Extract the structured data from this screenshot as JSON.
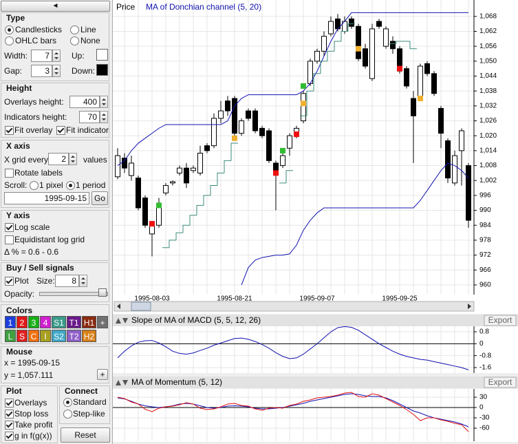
{
  "controls": {
    "collapse": "◄",
    "type": {
      "title": "Type",
      "options": [
        "Candlesticks",
        "Line",
        "OHLC bars",
        "None"
      ],
      "width_label": "Width:",
      "width": 7,
      "up_label": "Up:",
      "gap_label": "Gap:",
      "gap": 3,
      "down_label": "Down:"
    },
    "height": {
      "title": "Height",
      "overlays_label": "Overlays height:",
      "overlays": 400,
      "indicators_label": "Indicators height:",
      "indicators": 70,
      "fit_overlay": "Fit overlay",
      "fit_indicator": "Fit indicator"
    },
    "x_axis": {
      "title": "X axis",
      "grid_label": "X grid every",
      "grid_every": 2,
      "grid_unit": "values",
      "rotate": "Rotate labels",
      "scroll_label": "Scroll:",
      "scroll_options": [
        "1 pixel",
        "1 period"
      ],
      "date": "1995-09-15",
      "go": "Go"
    },
    "y_axis": {
      "title": "Y axis",
      "log": "Log scale",
      "equidistant": "Equidistant log grid",
      "delta": "Δ % = 0.6 - 0.6"
    },
    "signals": {
      "title": "Buy / Sell signals",
      "plot": "Plot",
      "size_label": "Size:",
      "size": 8,
      "opacity_label": "Opacity:"
    },
    "colors": {
      "title": "Colors",
      "buttons": [
        {
          "label": "1",
          "color": "#1c3fdc"
        },
        {
          "label": "2",
          "color": "#e01818"
        },
        {
          "label": "3",
          "color": "#18b018"
        },
        {
          "label": "4",
          "color": "#d020d0"
        },
        {
          "label": "S1",
          "color": "#3a9a8a"
        },
        {
          "label": "T1",
          "color": "#6a1a8a"
        },
        {
          "label": "H1",
          "color": "#8a2a10"
        },
        {
          "label": "+",
          "color": "#707070"
        },
        {
          "label": "L",
          "color": "#40a040"
        },
        {
          "label": "S",
          "color": "#e02020"
        },
        {
          "label": "C",
          "color": "#f07010"
        },
        {
          "label": "I",
          "color": "#a8a020"
        },
        {
          "label": "S2",
          "color": "#40a8c8"
        },
        {
          "label": "T2",
          "color": "#9060c8"
        },
        {
          "label": "H2",
          "color": "#d88018"
        }
      ]
    },
    "mouse": {
      "title": "Mouse",
      "x": "x = 1995-09-15",
      "y": "y = 1,057.111",
      "add": "+"
    },
    "plot": {
      "title": "Plot",
      "options": [
        "Overlays",
        "Stop loss",
        "Take profit",
        "g in f(g(x))"
      ]
    },
    "connect": {
      "title": "Connect",
      "options": [
        "Standard",
        "Step-like"
      ]
    },
    "reset": "Reset"
  },
  "chart_data": [
    {
      "type": "candlestick",
      "price_label": "Price",
      "categories": [
        null,
        null,
        null,
        null,
        null,
        "1995-08-03",
        null,
        null,
        null,
        null,
        null,
        null,
        null,
        null,
        null,
        null,
        null,
        "1995-08-21",
        null,
        null,
        null,
        null,
        null,
        null,
        null,
        null,
        null,
        null,
        null,
        "1995-09-07",
        null,
        null,
        null,
        null,
        null,
        null,
        null,
        null,
        null,
        null,
        null,
        "1995-09-25",
        null,
        null,
        null,
        null,
        null,
        null,
        null,
        null,
        null,
        null
      ],
      "open": [
        1003.5,
        1011,
        1004,
        1003,
        995,
        980.5,
        984,
        997,
        1001,
        1005,
        1007,
        1006,
        1005,
        1016,
        1016,
        1027,
        1034,
        1035,
        1021,
        1030,
        1030,
        1023,
        1022,
        1009,
        1008,
        1015,
        1020,
        1026,
        1041,
        1050,
        1054,
        1061,
        1067,
        1062,
        1067,
        1064,
        1055,
        1043,
        1066,
        1056,
        1058,
        1055,
        1047,
        1035,
        1035,
        1049,
        1045,
        1031,
        1018,
        1001,
        1014,
        1008
      ],
      "high": [
        1015,
        1013,
        1012,
        1004,
        996,
        985.5,
        995,
        1001,
        1002,
        1008,
        1009,
        1008,
        1016,
        1017,
        1029,
        1034,
        1036,
        1036,
        1027,
        1031,
        1031,
        1024,
        1023,
        1010,
        1013,
        1021,
        1024,
        1038,
        1051,
        1055,
        1062,
        1068,
        1069,
        1068,
        1068,
        1065,
        1057,
        1065,
        1067,
        1064,
        1060,
        1056,
        1048,
        1038,
        1049,
        1050,
        1046,
        1032,
        1019,
        1014,
        1023,
        1009
      ],
      "low": [
        1002.5,
        1005,
        1002,
        990,
        983,
        971.5,
        983,
        996,
        1000,
        1004,
        999,
        1005,
        1004,
        1013,
        1015,
        1025,
        1028,
        1019,
        1020,
        1026,
        1021,
        1019,
        1009,
        990,
        1007,
        1012,
        1019,
        1025,
        1040,
        1049,
        1052,
        1060,
        1062,
        1061,
        1063,
        1050,
        1047,
        1042,
        1063,
        1055,
        1053,
        1045,
        1039,
        1009,
        1034,
        1044,
        1036,
        1015,
        1001,
        1000,
        1000,
        983
      ],
      "close": [
        1012,
        1007,
        1009,
        991,
        984,
        984.5,
        992,
        1000,
        1001.5,
        1007,
        1001,
        1007,
        1013,
        1014,
        1027,
        1030,
        1030,
        1021,
        1026,
        1027,
        1022,
        1020,
        1010,
        1005,
        1012,
        1020,
        1023,
        1037,
        1050,
        1054,
        1060,
        1066,
        1063,
        1066,
        1064,
        1051,
        1048,
        1063,
        1064,
        1063,
        1055,
        1046,
        1040,
        1028,
        1048,
        1045,
        1037,
        1021,
        1003,
        1012,
        1022,
        986
      ],
      "up_color": "#ffffff",
      "down_color": "#000000",
      "overlays": [
        {
          "name": "MA of Donchian channel (5, 20)",
          "color": "#1010b0",
          "values": [
            1008,
            1010,
            1014,
            1017,
            1019,
            1021,
            1023,
            1024.5,
            1024.5,
            1024.5,
            1024.5,
            1024.5,
            1024.5,
            1024.5,
            1024.5,
            1024.5,
            1026,
            1032,
            1035,
            1036.5,
            1036.5,
            1036.5,
            1036.5,
            1036.5,
            1036.5,
            1036.5,
            1036.5,
            1038,
            1041,
            1046,
            1052,
            1058,
            1063,
            1066,
            1069.5,
            1069.5,
            1069.5,
            1069.5,
            1069.5,
            1069.5,
            1069.5,
            1069.5,
            1069.5,
            1069.5,
            1069.5,
            1069.5,
            1069.5,
            1069.5,
            1069.5,
            1069.5,
            1069.5,
            1069.5
          ],
          "lower": [
            null,
            null,
            null,
            null,
            null,
            null,
            null,
            null,
            null,
            null,
            null,
            null,
            null,
            null,
            null,
            null,
            null,
            null,
            960,
            967,
            970,
            971,
            971.5,
            972,
            972,
            972.5,
            976,
            982,
            986,
            989,
            991,
            991,
            991,
            991,
            991,
            991,
            991,
            991,
            991,
            991,
            991,
            991,
            991,
            991,
            994,
            998,
            1002,
            1006,
            1009,
            1008,
            1006,
            1003
          ]
        }
      ],
      "stop_line": {
        "color": "#3a8a7a",
        "values": [
          null,
          null,
          null,
          null,
          null,
          null,
          null,
          975,
          978,
          981,
          984,
          988,
          992,
          996,
          1000,
          1005,
          1010,
          1017,
          null,
          null,
          null,
          null,
          null,
          null,
          1001,
          1006,
          null,
          1028,
          1038,
          1045,
          1050,
          1054,
          1058,
          1062,
          1065,
          null,
          null,
          null,
          null,
          null,
          1057,
          1058,
          1058,
          1055,
          null,
          null,
          null,
          null,
          null,
          null,
          null,
          null
        ]
      },
      "signals": [
        {
          "index": 5,
          "value": 984.6,
          "color": "#ee1111"
        },
        {
          "index": 6,
          "value": 992,
          "color": "#33bb33"
        },
        {
          "index": 17,
          "value": 1019,
          "color": "#f0b030"
        },
        {
          "index": 23,
          "value": 1005,
          "color": "#ee1111"
        },
        {
          "index": 24,
          "value": 1014,
          "color": "#33bb33"
        },
        {
          "index": 26,
          "value": 1020.6,
          "color": "#ee1111"
        },
        {
          "index": 27,
          "value": 1033,
          "color": "#f0b030"
        },
        {
          "index": 27,
          "value": 1040,
          "color": "#33bb33"
        },
        {
          "index": 35,
          "value": 1055,
          "color": "#f0b030"
        },
        {
          "index": 41,
          "value": 1047,
          "color": "#ee1111"
        },
        {
          "index": 44,
          "value": 1035,
          "color": "#f0b030"
        }
      ],
      "ylim": [
        956.1,
        1074.6
      ],
      "yticks": [
        960,
        966,
        972,
        978,
        984,
        990,
        996,
        {
          "value": 1002,
          "label": "1,002"
        },
        {
          "value": 1008,
          "label": "1,008"
        },
        {
          "value": 1014,
          "label": "1,014"
        },
        {
          "value": 1020,
          "label": "1,020"
        },
        {
          "value": 1026,
          "label": "1,026"
        },
        {
          "value": 1032,
          "label": "1,032"
        },
        {
          "value": 1038,
          "label": "1,038"
        },
        {
          "value": 1044,
          "label": "1,044"
        },
        {
          "value": 1050,
          "label": "1,050"
        },
        {
          "value": 1056,
          "label": "1,056"
        },
        {
          "value": 1062,
          "label": "1,062"
        },
        {
          "value": 1068,
          "label": "1,068"
        }
      ],
      "grid": true
    },
    {
      "type": "line",
      "title": "Slope of MA of MACD (5, 5, 12, 26)",
      "export": "Export",
      "series": [
        {
          "color": "#1010b0",
          "values": [
            -0.95,
            -0.5,
            -0.15,
            0.1,
            0.2,
            0.22,
            0.05,
            -0.2,
            -0.5,
            -0.65,
            -0.7,
            -0.62,
            -0.45,
            -0.3,
            -0.1,
            0.05,
            0.2,
            0.35,
            0.38,
            0.3,
            0.15,
            -0.05,
            -0.3,
            -0.6,
            -0.85,
            -1.0,
            -0.95,
            -0.7,
            -0.35,
            0,
            0.4,
            0.8,
            1.08,
            1.15,
            1.1,
            0.9,
            0.6,
            0.3,
            0,
            -0.25,
            -0.5,
            -0.7,
            -0.85,
            -0.95,
            -1.05,
            -1.1,
            -1.2,
            -1.3,
            -1.4,
            -1.5,
            -1.6,
            -1.75
          ]
        }
      ],
      "ylim": [
        -1.97,
        1.17
      ],
      "yticks": [
        0.8,
        0,
        -0.8,
        -1.6
      ],
      "grid": true
    },
    {
      "type": "line",
      "title": "MA of Momentum (5, 12)",
      "export": "Export",
      "series": [
        {
          "color": "#1010b0",
          "values": [
            28,
            25,
            18,
            10,
            5,
            2,
            0,
            2,
            5,
            10,
            12,
            10,
            5,
            0,
            -2,
            0,
            4,
            5,
            4,
            2,
            -2,
            -4,
            -4,
            -2,
            0,
            4,
            8,
            12,
            18,
            22,
            26,
            30,
            34,
            38,
            40,
            38,
            34,
            32,
            32,
            28,
            20,
            10,
            0,
            -10,
            -16,
            -24,
            -30,
            -34,
            -38,
            -42,
            -48,
            -56
          ]
        },
        {
          "color": "#e01010",
          "values": [
            30,
            26,
            16,
            10,
            -5,
            -12,
            -2,
            2,
            4,
            8,
            14,
            10,
            -2,
            -6,
            -4,
            2,
            10,
            12,
            6,
            4,
            -4,
            -8,
            -2,
            0,
            -2,
            6,
            10,
            18,
            22,
            28,
            30,
            32,
            36,
            42,
            44,
            32,
            30,
            40,
            36,
            26,
            16,
            6,
            -6,
            -20,
            -38,
            -30,
            -30,
            -36,
            -40,
            -46,
            -50,
            -70
          ]
        }
      ],
      "ylim": [
        -98,
        54
      ],
      "yticks": [
        30,
        0,
        -30,
        -60
      ],
      "grid": true
    }
  ]
}
